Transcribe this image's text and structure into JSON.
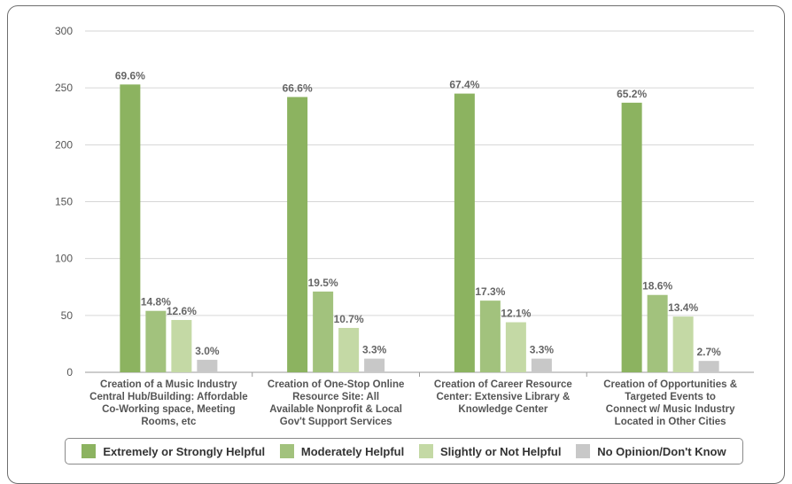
{
  "chart_data": {
    "type": "bar",
    "categories": [
      [
        "Creation of a Music Industry",
        "Central Hub/Building: Affordable",
        "Co-Working space, Meeting",
        "Rooms, etc"
      ],
      [
        "Creation of One-Stop Online",
        "Resource Site: All",
        "Available Nonprofit & Local",
        "Gov't Support Services"
      ],
      [
        "Creation of Career Resource",
        "Center: Extensive Library &",
        "Knowledge Center"
      ],
      [
        "Creation of Opportunities &",
        "Targeted Events to",
        "Connect w/ Music Industry",
        "Located in Other Cities"
      ]
    ],
    "series": [
      {
        "name": "Extremely or Strongly Helpful",
        "color": "#8cb360",
        "values": [
          253,
          242,
          245,
          237
        ],
        "labels": [
          "69.6%",
          "66.6%",
          "67.4%",
          "65.2%"
        ]
      },
      {
        "name": "Moderately Helpful",
        "color": "#a2c27d",
        "values": [
          54,
          71,
          63,
          68
        ],
        "labels": [
          "14.8%",
          "19.5%",
          "17.3%",
          "18.6%"
        ]
      },
      {
        "name": "Slightly or Not Helpful",
        "color": "#c4d9a5",
        "values": [
          46,
          39,
          44,
          49
        ],
        "labels": [
          "12.6%",
          "10.7%",
          "12.1%",
          "13.4%"
        ]
      },
      {
        "name": "No Opinion/Don't Know",
        "color": "#c8c8c8",
        "values": [
          11,
          12,
          12,
          10
        ],
        "labels": [
          "3.0%",
          "3.3%",
          "3.3%",
          "2.7%"
        ]
      }
    ],
    "yticks": [
      0,
      50,
      100,
      150,
      200,
      250,
      300
    ],
    "ylim": [
      0,
      300
    ],
    "grid": true,
    "legend": "bottom"
  }
}
